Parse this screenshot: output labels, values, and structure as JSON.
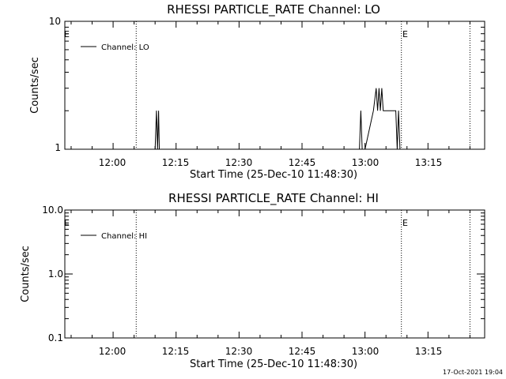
{
  "chart_data": [
    {
      "type": "line",
      "title": "RHESSI PARTICLE_RATE Channel: LO",
      "xlabel": "Start Time (25-Dec-10 11:48:30)",
      "ylabel": "Counts/sec",
      "x_ticks": [
        "12:00",
        "12:15",
        "12:30",
        "12:45",
        "13:00",
        "13:15"
      ],
      "y_ticks": [
        "1",
        "10"
      ],
      "y_scale": "log",
      "xlim": [
        "11:48:30",
        "13:28:30"
      ],
      "ylim": [
        1,
        10
      ],
      "legend": "top-left",
      "series": [
        {
          "name": "Channel: LO",
          "x": [
            "12:10:00",
            "12:10:20",
            "12:10:35",
            "12:10:50",
            "12:11:00",
            "12:58:40",
            "12:59:00",
            "12:59:20",
            "12:59:40",
            "13:00:00",
            "13:02:00",
            "13:02:40",
            "13:03:00",
            "13:03:20",
            "13:03:40",
            "13:04:00",
            "13:04:20",
            "13:04:40",
            "13:05:00",
            "13:07:20",
            "13:07:40",
            "13:08:00",
            "13:08:20"
          ],
          "values": [
            1,
            2,
            1,
            2,
            1,
            1,
            2,
            1,
            1,
            1,
            2,
            3,
            2,
            3,
            2,
            3,
            2,
            2,
            2,
            2,
            1,
            2,
            1
          ]
        }
      ],
      "vlines": [
        "12:05:30",
        "13:08:40",
        "13:25:00"
      ],
      "annotations": [
        {
          "text": "E",
          "x": "11:48:30"
        },
        {
          "text": "E",
          "x": "13:08:40"
        }
      ]
    },
    {
      "type": "line",
      "title": "RHESSI PARTICLE_RATE Channel: HI",
      "xlabel": "Start Time (25-Dec-10 11:48:30)",
      "ylabel": "Counts/sec",
      "x_ticks": [
        "12:00",
        "12:15",
        "12:30",
        "12:45",
        "13:00",
        "13:15"
      ],
      "y_ticks": [
        "0.1",
        "1.0",
        "10.0"
      ],
      "y_scale": "log",
      "xlim": [
        "11:48:30",
        "13:28:30"
      ],
      "ylim": [
        0.1,
        10
      ],
      "legend": "top-left",
      "series": [
        {
          "name": "Channel: HI",
          "x": [],
          "values": []
        }
      ],
      "vlines": [
        "12:05:30",
        "13:08:40",
        "13:25:00"
      ],
      "annotations": [
        {
          "text": "E",
          "x": "11:48:30"
        },
        {
          "text": "E",
          "x": "13:08:40"
        }
      ]
    }
  ],
  "footer": {
    "timestamp": "17-Oct-2021 19:04"
  }
}
